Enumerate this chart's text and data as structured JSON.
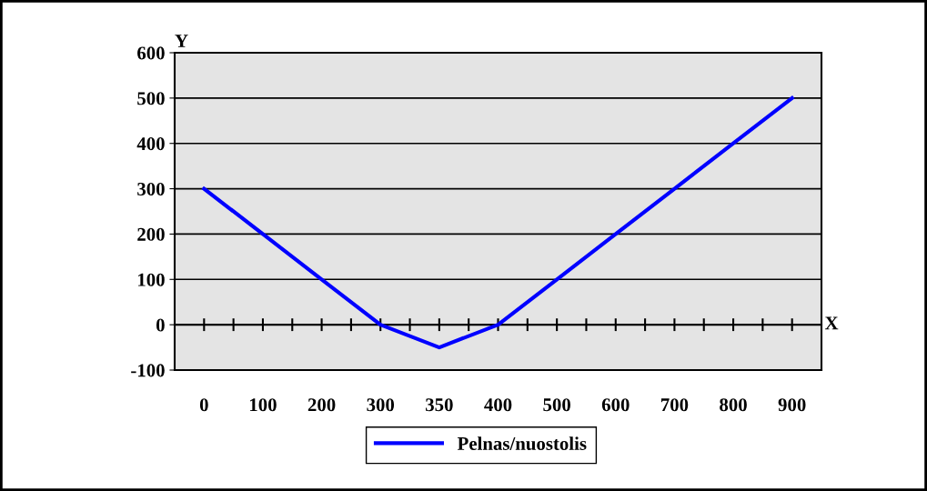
{
  "chart_data": {
    "type": "line",
    "xlabel": "X",
    "ylabel": "Y",
    "categories": [
      "0",
      "100",
      "200",
      "300",
      "350",
      "400",
      "500",
      "600",
      "700",
      "800",
      "900"
    ],
    "series": [
      {
        "name": "Pelnas/nuostolis",
        "color": "#0000ff",
        "values": [
          300,
          200,
          100,
          0,
          -50,
          0,
          100,
          200,
          300,
          400,
          500
        ]
      }
    ],
    "ylim": [
      -100,
      600
    ],
    "yticks": [
      -100,
      0,
      100,
      200,
      300,
      400,
      500,
      600
    ],
    "grid": "y",
    "legend": "bottom",
    "marker": "none",
    "line_style": "solid"
  }
}
